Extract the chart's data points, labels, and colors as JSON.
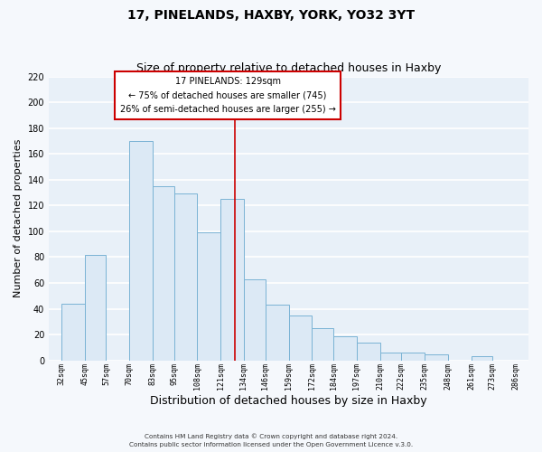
{
  "title": "17, PINELANDS, HAXBY, YORK, YO32 3YT",
  "subtitle": "Size of property relative to detached houses in Haxby",
  "xlabel": "Distribution of detached houses by size in Haxby",
  "ylabel": "Number of detached properties",
  "bar_left_edges": [
    32,
    45,
    57,
    70,
    83,
    95,
    108,
    121,
    134,
    146,
    159,
    172,
    184,
    197,
    210,
    222,
    235,
    248,
    261,
    273
  ],
  "bar_heights": [
    44,
    82,
    0,
    170,
    135,
    129,
    99,
    125,
    63,
    43,
    35,
    25,
    19,
    14,
    6,
    6,
    5,
    0,
    3,
    0
  ],
  "bar_widths": [
    13,
    12,
    13,
    13,
    12,
    13,
    13,
    13,
    12,
    13,
    13,
    12,
    13,
    13,
    12,
    13,
    13,
    13,
    12,
    13
  ],
  "tick_labels": [
    "32sqm",
    "45sqm",
    "57sqm",
    "70sqm",
    "83sqm",
    "95sqm",
    "108sqm",
    "121sqm",
    "134sqm",
    "146sqm",
    "159sqm",
    "172sqm",
    "184sqm",
    "197sqm",
    "210sqm",
    "222sqm",
    "235sqm",
    "248sqm",
    "261sqm",
    "273sqm",
    "286sqm"
  ],
  "tick_positions": [
    32,
    45,
    57,
    70,
    83,
    95,
    108,
    121,
    134,
    146,
    159,
    172,
    184,
    197,
    210,
    222,
    235,
    248,
    261,
    273,
    286
  ],
  "ylim": [
    0,
    220
  ],
  "xlim": [
    25,
    293
  ],
  "bar_color": "#dce9f5",
  "bar_edge_color": "#7ab3d4",
  "vline_x": 129,
  "vline_color": "#cc0000",
  "annotation_title": "17 PINELANDS: 129sqm",
  "annotation_line1": "← 75% of detached houses are smaller (745)",
  "annotation_line2": "26% of semi-detached houses are larger (255) →",
  "annotation_box_facecolor": "#ffffff",
  "annotation_box_edgecolor": "#cc0000",
  "footer1": "Contains HM Land Registry data © Crown copyright and database right 2024.",
  "footer2": "Contains public sector information licensed under the Open Government Licence v.3.0.",
  "plot_bg_color": "#e8f0f8",
  "fig_bg_color": "#f5f8fc",
  "grid_color": "#ffffff",
  "title_fontsize": 10,
  "subtitle_fontsize": 9,
  "xlabel_fontsize": 9,
  "ylabel_fontsize": 8,
  "yticks": [
    0,
    20,
    40,
    60,
    80,
    100,
    120,
    140,
    160,
    180,
    200,
    220
  ]
}
